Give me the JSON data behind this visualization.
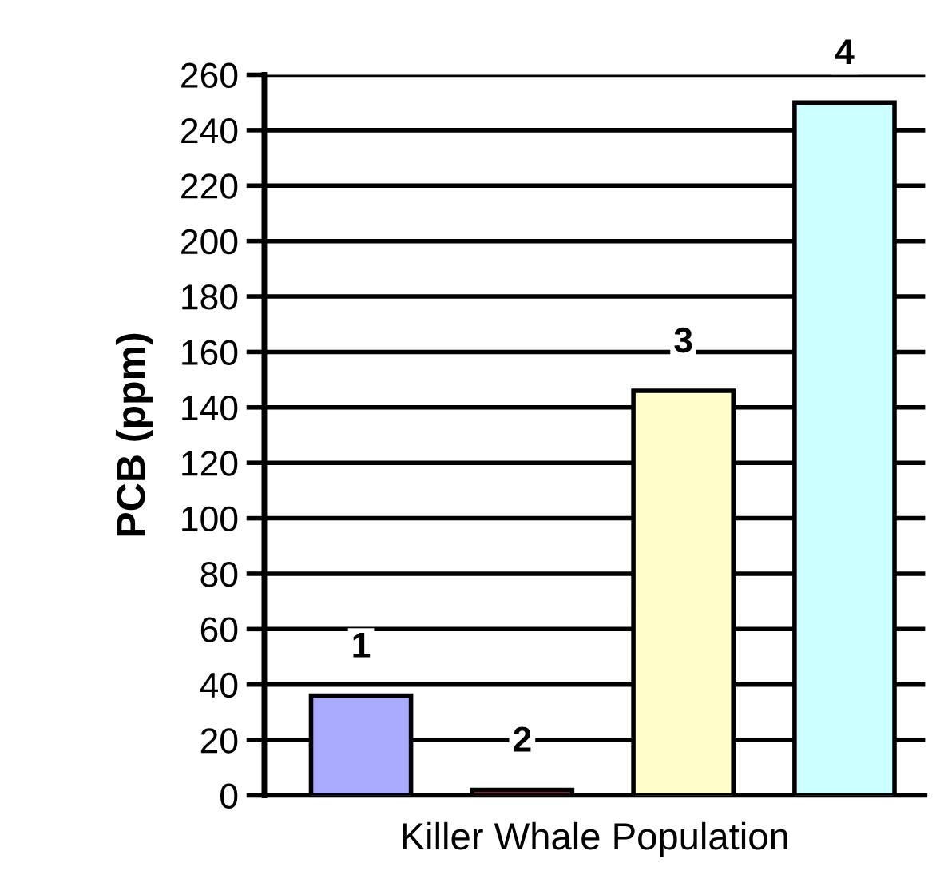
{
  "chart_data": {
    "type": "bar",
    "xlabel": "Killer Whale Population",
    "ylabel": "PCB (ppm)",
    "categories": [
      "1",
      "2",
      "3",
      "4"
    ],
    "values": [
      36,
      2,
      146,
      250
    ],
    "colors": [
      "#aaaaff",
      "#993366",
      "#ffffcc",
      "#ccffff"
    ],
    "ylim": [
      0,
      260
    ],
    "yticks": [
      0,
      20,
      40,
      60,
      80,
      100,
      120,
      140,
      160,
      180,
      200,
      220,
      240,
      260
    ],
    "grid": "y"
  }
}
